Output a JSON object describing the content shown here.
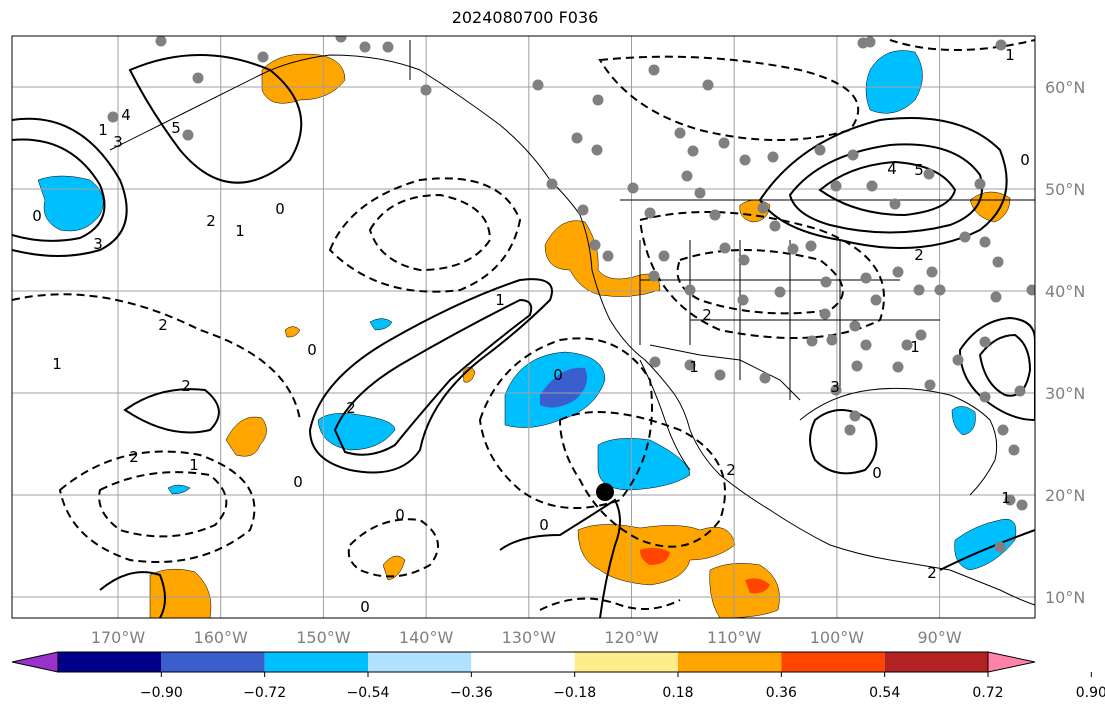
{
  "title": "2024080700 F036",
  "lat_labels": [
    "60°N",
    "50°N",
    "40°N",
    "30°N",
    "20°N",
    "10°N"
  ],
  "lat_values": [
    60,
    50,
    40,
    30,
    20,
    10
  ],
  "lon_labels": [
    "170°W",
    "160°W",
    "150°W",
    "140°W",
    "130°W",
    "120°W",
    "110°W",
    "100°W",
    "90°W"
  ],
  "lon_values": [
    -170,
    -160,
    -150,
    -140,
    -130,
    -120,
    -110,
    -100,
    -90
  ],
  "colorbar": {
    "tick_labels": [
      "−0.90",
      "−0.72",
      "−0.54",
      "−0.36",
      "−0.18",
      "0.18",
      "0.36",
      "0.54",
      "0.72",
      "0.90"
    ],
    "colors": [
      "#9932cc",
      "#00008b",
      "#3a5fcd",
      "#00bfff",
      "#b0e2ff",
      "#ffffff",
      "#ffec8b",
      "#ffa500",
      "#ff4500",
      "#b22222",
      "#ff83a8"
    ]
  },
  "contour_labels": [
    "5",
    "4",
    "3",
    "1",
    "0",
    "2",
    "1",
    "2",
    "3",
    "0",
    "1",
    "2",
    "1",
    "0",
    "2",
    "0",
    "1",
    "2",
    "0",
    "0",
    "2",
    "1",
    "2",
    "3",
    "4",
    "5",
    "1",
    "0",
    "2",
    "0",
    "1",
    "1",
    "2",
    "0",
    "0"
  ],
  "colors": {
    "orange": "#ffa500",
    "red": "#ff4500",
    "light_blue": "#00bfff",
    "blue": "#3a5fcd",
    "gray_dot": "#808080",
    "grid": "#a0a0a0"
  }
}
